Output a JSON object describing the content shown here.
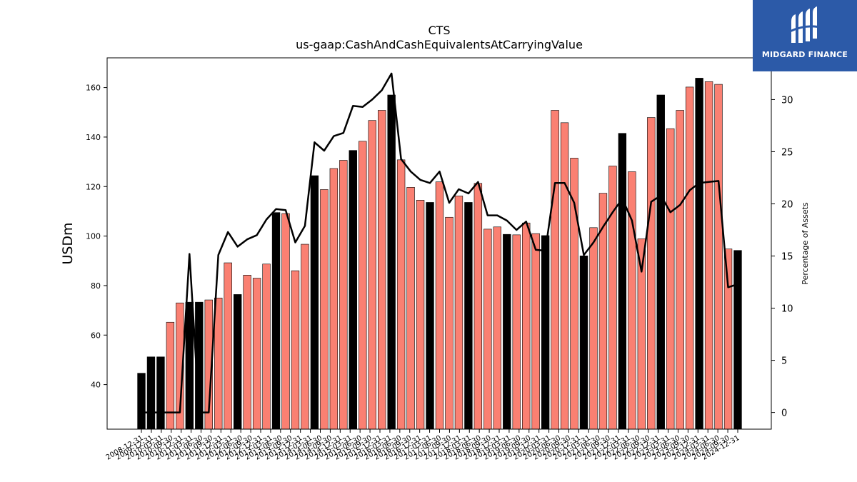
{
  "chart_data": {
    "type": "bar",
    "title": "CTS",
    "subtitle": "us-gaap:CashAndCashEquivalentsAtCarryingValue",
    "ylabel": "USDm",
    "y2label": "Percentage of Assets",
    "ylim": [
      22,
      172
    ],
    "y2lim": [
      -1.6,
      34
    ],
    "yticks": [
      40,
      60,
      80,
      100,
      120,
      140,
      160
    ],
    "y2ticks": [
      0,
      5,
      10,
      15,
      20,
      25,
      30
    ],
    "grid": false,
    "categories": [
      "2008-12-31",
      "2009-09-30",
      "2009-12-31",
      "2010-03-31",
      "2010-06-30",
      "2010-09-30",
      "2010-12-31",
      "2011-03-31",
      "2011-06-30",
      "2011-09-30",
      "2011-12-31",
      "2012-03-31",
      "2012-06-30",
      "2012-09-30",
      "2012-12-31",
      "2013-03-31",
      "2013-06-30",
      "2013-09-30",
      "2013-12-31",
      "2014-03-31",
      "2014-06-30",
      "2014-09-30",
      "2014-12-31",
      "2015-03-31",
      "2015-06-30",
      "2015-09-30",
      "2015-12-31",
      "2016-03-31",
      "2016-06-30",
      "2016-09-30",
      "2016-12-31",
      "2017-03-31",
      "2017-06-30",
      "2017-09-30",
      "2017-12-31",
      "2018-03-31",
      "2018-06-30",
      "2018-09-30",
      "2018-12-31",
      "2019-03-31",
      "2019-06-30",
      "2019-09-30",
      "2019-12-31",
      "2020-03-31",
      "2020-06-30",
      "2020-09-30",
      "2020-12-31",
      "2021-03-31",
      "2021-06-30",
      "2021-09-30",
      "2021-12-31",
      "2022-03-31",
      "2022-06-30",
      "2022-09-30",
      "2022-12-31",
      "2023-03-31",
      "2023-06-30",
      "2023-09-30",
      "2023-12-31",
      "2024-03-31",
      "2024-06-30",
      "2024-09-30",
      "2024-12-31"
    ],
    "xtick_labels": [
      "2008-12-31",
      "2009-12-31",
      "2010-03-31",
      "2010-09-30",
      "2010-12-31",
      "2011-03-31",
      "2011-06-30",
      "2011-09-30",
      "2011-12-31",
      "2012-03-31",
      "2012-06-30",
      "2012-09-30",
      "2012-12-31",
      "2013-03-31",
      "2013-06-30",
      "2013-09-30",
      "2013-12-31",
      "2014-03-31",
      "2014-06-30",
      "2014-09-30",
      "2014-12-31",
      "2015-03-31",
      "2015-06-30",
      "2015-09-30",
      "2015-12-31",
      "2016-03-31",
      "2016-06-30",
      "2016-09-30",
      "2016-12-31",
      "2017-03-31",
      "2017-06-30",
      "2017-09-30",
      "2017-12-31",
      "2018-03-31",
      "2018-06-30",
      "2018-09-30",
      "2018-12-31",
      "2019-03-31",
      "2019-06-30",
      "2019-09-30",
      "2019-12-31",
      "2020-03-31",
      "2020-06-30",
      "2020-09-30",
      "2020-12-31",
      "2021-03-31",
      "2021-06-30",
      "2021-09-30",
      "2021-12-31",
      "2022-03-31",
      "2022-06-30",
      "2022-09-30",
      "2022-12-31",
      "2023-03-31",
      "2023-06-30",
      "2023-09-30",
      "2023-12-31",
      "2024-03-31",
      "2024-06-30",
      "2024-09-30",
      "2024-12-31"
    ],
    "bars": {
      "values": [
        44.6,
        51.2,
        51.2,
        65.2,
        73.0,
        73.3,
        73.3,
        74.2,
        75.0,
        89.2,
        76.4,
        84.2,
        83.0,
        88.7,
        109.5,
        109.1,
        86.0,
        96.7,
        124.4,
        118.8,
        127.3,
        130.6,
        134.6,
        138.3,
        146.7,
        150.8,
        157.0,
        130.8,
        119.7,
        114.5,
        113.6,
        121.9,
        107.6,
        116.2,
        113.6,
        121.3,
        102.8,
        103.7,
        100.7,
        100.5,
        105.3,
        101.0,
        100.2,
        150.8,
        145.8,
        131.5,
        92.0,
        103.4,
        117.3,
        128.3,
        141.5,
        126.0,
        98.9,
        147.9,
        157.0,
        143.4,
        150.8,
        160.2,
        163.8,
        162.4,
        161.3,
        94.8,
        94.2
      ],
      "highlight": [
        true,
        true,
        true,
        false,
        false,
        true,
        true,
        false,
        false,
        false,
        true,
        false,
        false,
        false,
        true,
        false,
        false,
        false,
        true,
        false,
        false,
        false,
        true,
        false,
        false,
        false,
        true,
        false,
        false,
        false,
        true,
        false,
        false,
        false,
        true,
        false,
        false,
        false,
        true,
        false,
        false,
        false,
        true,
        false,
        false,
        false,
        true,
        false,
        false,
        false,
        true,
        false,
        false,
        false,
        true,
        false,
        false,
        false,
        true,
        false,
        false,
        false,
        true
      ],
      "color_highlight": "#000000",
      "color_normal": "#fa8072",
      "edge_color": "#000000"
    },
    "line": {
      "axis": "right",
      "color": "#000000",
      "values": [
        0.0,
        0.0,
        0.0,
        0.0,
        0.0,
        15.2,
        0.0,
        0.0,
        15.1,
        17.3,
        15.9,
        16.6,
        17.0,
        18.5,
        19.5,
        19.4,
        16.3,
        17.9,
        25.9,
        25.1,
        26.5,
        26.8,
        29.4,
        29.3,
        30.0,
        30.9,
        32.5,
        24.3,
        23.1,
        22.3,
        22.0,
        23.1,
        20.1,
        21.4,
        21.0,
        22.1,
        18.9,
        18.9,
        18.4,
        17.5,
        18.3,
        15.6,
        15.5,
        22.0,
        22.0,
        20.1,
        15.1,
        16.3,
        17.8,
        19.2,
        20.5,
        18.4,
        13.5,
        20.2,
        20.8,
        19.2,
        19.9,
        21.3,
        22.0,
        22.1,
        22.2,
        12.0,
        12.3
      ]
    }
  },
  "logo": {
    "text": "MIDGARD FINANCE",
    "bg_color": "#2c5aa8"
  }
}
